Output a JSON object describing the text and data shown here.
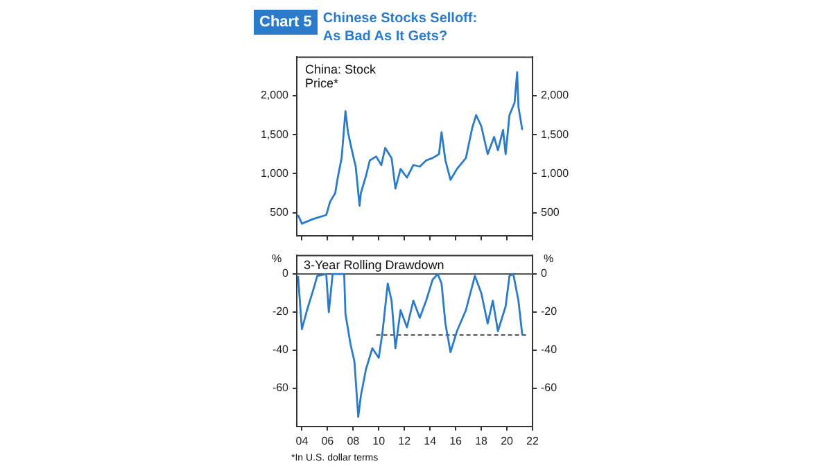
{
  "chart_data": [
    {
      "type": "line",
      "title": "Chinese Stocks Selloff: As Bad As It Gets?",
      "subtitle": "Chart 5",
      "annotations": [
        "China: Stock Price*"
      ],
      "x": [
        2003.7,
        2004.0,
        2004.9,
        2005.9,
        2006.2,
        2006.6,
        2006.8,
        2007.1,
        2007.4,
        2007.6,
        2007.9,
        2008.2,
        2008.5,
        2008.6,
        2009.0,
        2009.3,
        2009.8,
        2010.2,
        2010.5,
        2011.0,
        2011.3,
        2011.7,
        2012.2,
        2012.7,
        2013.2,
        2013.7,
        2014.2,
        2014.7,
        2014.9,
        2015.2,
        2015.6,
        2016.1,
        2016.8,
        2017.3,
        2017.6,
        2018.0,
        2018.5,
        2019.0,
        2019.3,
        2019.7,
        2019.9,
        2020.2,
        2020.6,
        2020.8,
        2020.9,
        2021.2
      ],
      "series": [
        {
          "color": "#2b7bca",
          "values": [
            470,
            360,
            420,
            470,
            640,
            750,
            950,
            1200,
            1800,
            1530,
            1300,
            1090,
            590,
            750,
            970,
            1170,
            1220,
            1110,
            1330,
            1200,
            810,
            1060,
            950,
            1110,
            1090,
            1170,
            1200,
            1250,
            1530,
            1170,
            920,
            1060,
            1200,
            1590,
            1750,
            1610,
            1250,
            1470,
            1300,
            1560,
            1250,
            1750,
            1910,
            2300,
            1860,
            1560
          ]
        }
      ],
      "xlim": [
        2003.6,
        2022
      ],
      "xticks": [
        2004,
        2006,
        2008,
        2010,
        2012,
        2014,
        2016,
        2018,
        2020,
        2022
      ],
      "ylim": [
        200,
        2500
      ],
      "yticks": [
        500,
        {
          "value": 1000,
          "label": "1,000"
        },
        {
          "value": 1500,
          "label": "1,500"
        },
        {
          "value": 2000,
          "label": "2,000"
        }
      ],
      "y2lim": [
        200,
        2500
      ],
      "y2ticks": [
        500,
        {
          "value": 1000,
          "label": "1,000"
        },
        {
          "value": 1500,
          "label": "1,500"
        },
        {
          "value": 2000,
          "label": "2,000"
        }
      ],
      "tick_labels": "y",
      "grid": false,
      "legend": false,
      "line_style": "solid",
      "marker": "none"
    },
    {
      "type": "line",
      "title": "3-Year Rolling Drawdown",
      "ylabel": "%",
      "y2label": "%",
      "annotations": [
        "*In U.S. dollar terms"
      ],
      "x": [
        2003.7,
        2004.0,
        2004.4,
        2004.9,
        2005.2,
        2005.9,
        2006.1,
        2006.4,
        2007.3,
        2007.4,
        2007.8,
        2008.1,
        2008.4,
        2008.6,
        2009.0,
        2009.5,
        2010.0,
        2010.3,
        2010.7,
        2011.0,
        2011.3,
        2011.7,
        2012.2,
        2012.7,
        2013.2,
        2013.7,
        2014.2,
        2014.6,
        2014.9,
        2015.2,
        2015.6,
        2016.1,
        2016.8,
        2017.5,
        2018.0,
        2018.5,
        2018.9,
        2019.3,
        2019.9,
        2020.2,
        2020.5,
        2020.9,
        2021.2
      ],
      "series": [
        {
          "color": "#2b7bca",
          "values": [
            -1,
            -29,
            -19,
            -8,
            -1,
            0,
            -20,
            0,
            0,
            -21,
            -37,
            -46,
            -75,
            -64,
            -50,
            -39,
            -44,
            -30,
            -5,
            -14,
            -39,
            -19,
            -28,
            -14,
            -23,
            -14,
            -3,
            0,
            -5,
            -26,
            -41,
            -30,
            -19,
            -1,
            -10,
            -26,
            -14,
            -30,
            -17,
            -1,
            0,
            -14,
            -32
          ]
        },
        {
          "color": "#555555",
          "x": [
            2009.8,
            2021.5
          ],
          "values": [
            -32,
            -32
          ],
          "line_style": "dashed"
        }
      ],
      "ref_lines": [
        {
          "axis": "y",
          "value": 0,
          "color": "#555555"
        }
      ],
      "xlim": [
        2003.6,
        2022
      ],
      "xticks": [
        {
          "value": 2004,
          "label": "04"
        },
        {
          "value": 2006,
          "label": "06"
        },
        {
          "value": 2008,
          "label": "08"
        },
        {
          "value": 2010,
          "label": "10"
        },
        {
          "value": 2012,
          "label": "12"
        },
        {
          "value": 2014,
          "label": "14"
        },
        {
          "value": 2016,
          "label": "16"
        },
        {
          "value": 2018,
          "label": "18"
        },
        {
          "value": 2020,
          "label": "20"
        },
        {
          "value": 2022,
          "label": "22"
        }
      ],
      "ylim": [
        -80,
        10
      ],
      "yticks": [
        0,
        -20,
        -40,
        -60
      ],
      "y2lim": [
        -80,
        10
      ],
      "y2ticks": [
        0,
        -20,
        -40,
        -60
      ],
      "grid": false,
      "legend": false,
      "line_style": "solid",
      "marker": "none"
    }
  ]
}
